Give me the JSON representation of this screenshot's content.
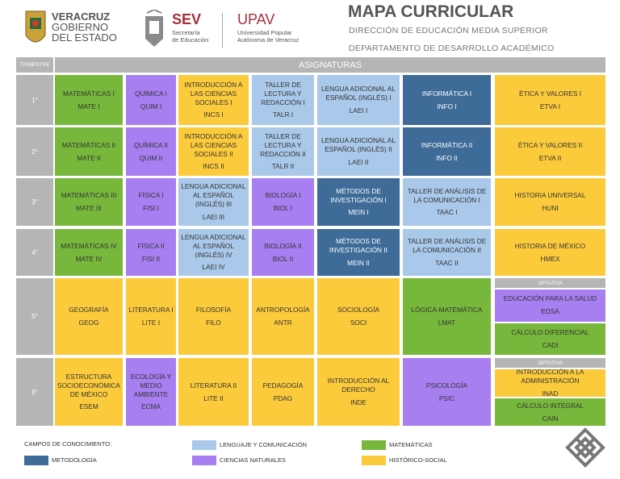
{
  "header": {
    "state": {
      "lines": [
        "VERACRUZ",
        "GOBIERNO",
        "DEL ESTADO"
      ]
    },
    "sev": {
      "acronym": "SEV",
      "lines": [
        "Secretaría",
        "de Educación"
      ]
    },
    "upav": {
      "acronym": "UPAV",
      "lines": [
        "Universidad Popular",
        "Autónoma de Veracruz"
      ]
    },
    "title": "MAPA CURRICULAR",
    "subtitles": [
      "DIRECCIÓN DE EDUCACIÓN MEDIA SUPERIOR",
      "DEPARTAMENTO DE DESARROLLO ACADÉMICO"
    ]
  },
  "table": {
    "headers": {
      "period": "TRIMESTRE",
      "subjects": "ASIGNATURAS"
    },
    "rows": [
      {
        "label": "1°",
        "cells": [
          {
            "name": "MATEMÁTICAS I",
            "code": "MATE I",
            "color": "#77b83c"
          },
          {
            "name": "QUÍMICA I",
            "code": "QUIM I",
            "color": "#a77ff0"
          },
          {
            "name": "INTRODUCCIÓN A LAS CIENCIAS SOCIALES I",
            "code": "INCS I",
            "color": "#fbcb3c"
          },
          {
            "name": "TALLER DE LECTURA Y REDACCIÓN I",
            "code": "TALR I",
            "color": "#a9c8ea"
          },
          {
            "name": "LENGUA ADICIONAL AL ESPAÑOL (INGLÉS) I",
            "code": "LAEI I",
            "color": "#a9c8ea"
          },
          {
            "name": "INFORMÁTICA I",
            "code": "INFO I",
            "color": "#3e6b98"
          },
          {
            "name": "ÉTICA Y VALORES I",
            "code": "ETVA I",
            "color": "#fbcb3c"
          }
        ]
      },
      {
        "label": "2°",
        "cells": [
          {
            "name": "MATEMÁTICAS II",
            "code": "MATE II",
            "color": "#77b83c"
          },
          {
            "name": "QUÍMICA II",
            "code": "QUIM II",
            "color": "#a77ff0"
          },
          {
            "name": "INTRODUCCIÓN A LAS CIENCIAS SOCIALES II",
            "code": "INCS II",
            "color": "#fbcb3c"
          },
          {
            "name": "TALLER DE LECTURA Y REDACCIÓN II",
            "code": "TALR II",
            "color": "#a9c8ea"
          },
          {
            "name": "LENGUA ADICIONAL AL ESPAÑOL (INGLÉS) II",
            "code": "LAEI II",
            "color": "#a9c8ea"
          },
          {
            "name": "INFORMÁTICA II",
            "code": "INFO II",
            "color": "#3e6b98"
          },
          {
            "name": "ÉTICA Y VALORES II",
            "code": "ETVA II",
            "color": "#fbcb3c"
          }
        ]
      },
      {
        "label": "3°",
        "cells": [
          {
            "name": "MATEMÁTICAS III",
            "code": "MATE III",
            "color": "#77b83c"
          },
          {
            "name": "FÍSICA I",
            "code": "FISI I",
            "color": "#a77ff0"
          },
          {
            "name": "LENGUA ADICIONAL AL ESPAÑOL (INGLÉS) III",
            "code": "LAEI III",
            "color": "#a9c8ea"
          },
          {
            "name": "BIOLOGÍA I",
            "code": "BIOL I",
            "color": "#a77ff0"
          },
          {
            "name": "MÉTODOS DE INVESTIGACIÓN I",
            "code": "MEIN I",
            "color": "#3e6b98"
          },
          {
            "name": "TALLER DE ANÁLISIS DE LA COMUNICACIÓN I",
            "code": "TAAC I",
            "color": "#a9c8ea"
          },
          {
            "name": "HISTORIA UNIVERSAL",
            "code": "HUNI",
            "color": "#fbcb3c"
          }
        ]
      },
      {
        "label": "4°",
        "cells": [
          {
            "name": "MATEMÁTICAS IV",
            "code": "MATE IV",
            "color": "#77b83c"
          },
          {
            "name": "FÍSICA II",
            "code": "FISI II",
            "color": "#a77ff0"
          },
          {
            "name": "LENGUA ADICIONAL AL ESPAÑOL (INGLÉS) IV",
            "code": "LAEI IV",
            "color": "#a9c8ea"
          },
          {
            "name": "BIOLOGÍA II",
            "code": "BIOL II",
            "color": "#a77ff0"
          },
          {
            "name": "MÉTODOS DE INVESTIGACIÓN II",
            "code": "MEIN II",
            "color": "#3e6b98"
          },
          {
            "name": "TALLER DE ANÁLISIS DE LA COMUNICACIÓN II",
            "code": "TAAC II",
            "color": "#a9c8ea"
          },
          {
            "name": "HISTORIA DE MÉXICO",
            "code": "HMEX",
            "color": "#fbcb3c"
          }
        ]
      },
      {
        "label": "5°",
        "cells": [
          {
            "name": "GEOGRAFÍA",
            "code": "GEOG",
            "color": "#fbcb3c"
          },
          {
            "name": "LITERATURA I",
            "code": "LITE I",
            "color": "#fbcb3c"
          },
          {
            "name": "FILOSOFÍA",
            "code": "FILO",
            "color": "#fbcb3c"
          },
          {
            "name": "ANTROPOLOGÍA",
            "code": "ANTR",
            "color": "#fbcb3c"
          },
          {
            "name": "SOCIOLOGÍA",
            "code": "SOCI",
            "color": "#fbcb3c"
          },
          {
            "name": "LÓGICA-MATEMÁTICA",
            "code": "LMAT",
            "color": "#77b83c"
          }
        ],
        "optativa": {
          "label": "OPTATIVA",
          "options": [
            {
              "name": "EDUCACIÓN PARA LA SALUD",
              "code": "EDSA",
              "color": "#a77ff0"
            },
            {
              "name": "CÁLCULO DIFERENCIAL",
              "code": "CADI",
              "color": "#77b83c"
            }
          ]
        }
      },
      {
        "label": "6°",
        "cells": [
          {
            "name": "ESTRUCTURA SOCIOECONÓMICA DE MÉXICO",
            "code": "ESEM",
            "color": "#fbcb3c"
          },
          {
            "name": "ECOLOGÍA Y MEDIO AMBIENTE",
            "code": "ECMA",
            "color": "#a77ff0"
          },
          {
            "name": "LITERATURA II",
            "code": "LITE II",
            "color": "#fbcb3c"
          },
          {
            "name": "PEDAGOGÍA",
            "code": "PDAG",
            "color": "#fbcb3c"
          },
          {
            "name": "INTRODUCCIÓN AL DERECHO",
            "code": "INDE",
            "color": "#fbcb3c"
          },
          {
            "name": "PSICOLOGÍA",
            "code": "PSIC",
            "color": "#a77ff0"
          }
        ],
        "optativa": {
          "label": "OPTATIVA",
          "options": [
            {
              "name": "INTRODUCCIÓN A LA ADMINISTRACIÓN",
              "code": "INAD",
              "color": "#fbcb3c"
            },
            {
              "name": "CÁLCULO INTEGRAL",
              "code": "CAIN",
              "color": "#77b83c"
            }
          ]
        }
      }
    ]
  },
  "legend": {
    "title": "CAMPOS DE CONOCIMIENTO:",
    "items": [
      {
        "label": "METODOLOGÍA",
        "color": "#3e6b98"
      },
      {
        "label": "LENGUAJE Y COMUNICACIÓN",
        "color": "#a9c8ea"
      },
      {
        "label": "CIENCIAS NATURALES",
        "color": "#a77ff0"
      },
      {
        "label": "MATEMÁTICAS",
        "color": "#77b83c"
      },
      {
        "label": "HISTÓRICO-SOCIAL",
        "color": "#fbcb3c"
      }
    ]
  }
}
